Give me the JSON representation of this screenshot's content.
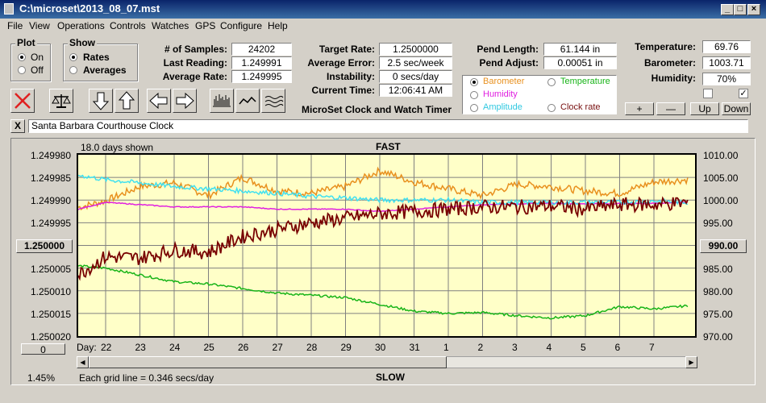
{
  "window": {
    "title": "C:\\microset\\2013_08_07.mst"
  },
  "menu": [
    "File",
    "View",
    "Operations",
    "Controls",
    "Watches",
    "GPS",
    "Configure",
    "Help"
  ],
  "plot_group": {
    "title": "Plot",
    "on": "On",
    "off": "Off",
    "selected": "On"
  },
  "show_group": {
    "title": "Show",
    "rates": "Rates",
    "averages": "Averages",
    "selected": "Rates"
  },
  "stats": {
    "samples_label": "# of Samples:",
    "samples": "24202",
    "last_label": "Last Reading:",
    "last": "1.249991",
    "avg_label": "Average Rate:",
    "avg": "1.249995",
    "target_label": "Target Rate:",
    "target": "1.2500000",
    "avgerr_label": "Average Error:",
    "avgerr": "2.5 sec/week",
    "instab_label": "Instability:",
    "instab": "0 secs/day",
    "curtime_label": "Current Time:",
    "curtime": "12:06:41 AM",
    "pendlen_label": "Pend Length:",
    "pendlen": "61.144 in",
    "pendadj_label": "Pend Adjust:",
    "pendadj": "0.00051 in",
    "temp_label": "Temperature:",
    "temp": "69.76",
    "baro_label": "Barometer:",
    "baro": "1003.71",
    "hum_label": "Humidity:",
    "hum": "70%"
  },
  "app_title": "MicroSet Clock and Watch Timer",
  "series_select": {
    "barometer": "Barometer",
    "temperature": "Temperature",
    "humidity": "Humidity",
    "amplitude": "Amplitude",
    "clockrate": "Clock rate",
    "selected": "Barometer"
  },
  "scale_buttons": {
    "plus": "+",
    "minus": "—",
    "up": "Up",
    "down": "Down"
  },
  "checkboxes": {
    "left": "",
    "right": "✓"
  },
  "clock_name": "Santa Barbara Courthouse Clock",
  "close_x": "X",
  "chart_header": {
    "days_shown": "18.0 days shown",
    "top": "FAST",
    "bottom": "SLOW",
    "grid_note": "Each grid line = 0.346 secs/day",
    "percent": "1.45%",
    "day_label": "Day:"
  },
  "left_btn": "1.250000",
  "right_btn": "990.00",
  "zero_btn": "0",
  "colors": {
    "barometer": "#e8901e",
    "temperature": "#18b418",
    "humidity": "#e020e0",
    "amplitude": "#40e0f0",
    "clockrate": "#780000",
    "grid": "#808080",
    "plotbg": "#ffffc8"
  },
  "chart_data": {
    "type": "line",
    "left_axis": {
      "ticks": [
        "1.249980",
        "1.249985",
        "1.249990",
        "1.249995",
        "1.250000",
        "1.250005",
        "1.250010",
        "1.250015",
        "1.250020"
      ],
      "range": [
        1.24998,
        1.25002
      ],
      "inverted": true
    },
    "right_axis": {
      "ticks": [
        "1010.00",
        "1005.00",
        "1000.00",
        "995.00",
        "990.00",
        "985.00",
        "980.00",
        "975.00",
        "970.00"
      ],
      "range": [
        970,
        1010
      ]
    },
    "x_ticks": [
      "22",
      "23",
      "24",
      "25",
      "26",
      "27",
      "28",
      "29",
      "30",
      "31",
      "1",
      "2",
      "3",
      "4",
      "5",
      "6",
      "7"
    ],
    "x_range": [
      21.2,
      39.2
    ],
    "series": [
      {
        "name": "Barometer",
        "color": "#e8901e",
        "scale": "right",
        "points": [
          [
            21.2,
            998.4
          ],
          [
            22,
            999.8
          ],
          [
            23,
            1003
          ],
          [
            24,
            1003.8
          ],
          [
            25,
            1001
          ],
          [
            26,
            1005
          ],
          [
            27,
            1002
          ],
          [
            28,
            1001.5
          ],
          [
            29,
            1003
          ],
          [
            30,
            1006.5
          ],
          [
            31,
            1004
          ],
          [
            32,
            1002.5
          ],
          [
            33,
            1001
          ],
          [
            34,
            1003.5
          ],
          [
            35,
            1003
          ],
          [
            36,
            1002
          ],
          [
            37,
            1001.5
          ],
          [
            38,
            1004
          ],
          [
            39,
            1004.5
          ]
        ]
      },
      {
        "name": "Temperature",
        "color": "#18b418",
        "scale": "right",
        "points": [
          [
            21.2,
            985.5
          ],
          [
            22,
            985
          ],
          [
            23,
            983.5
          ],
          [
            24,
            982
          ],
          [
            25,
            981.5
          ],
          [
            26,
            980.5
          ],
          [
            27,
            979.5
          ],
          [
            28,
            979
          ],
          [
            29,
            978.5
          ],
          [
            30,
            977
          ],
          [
            31,
            975.5
          ],
          [
            32,
            975
          ],
          [
            33,
            975.2
          ],
          [
            34,
            974.5
          ],
          [
            35,
            974
          ],
          [
            36,
            974.5
          ],
          [
            37,
            976.5
          ],
          [
            38,
            976
          ],
          [
            39,
            976.7
          ]
        ]
      },
      {
        "name": "Humidity",
        "color": "#e020e0",
        "scale": "right",
        "points": [
          [
            21.2,
            998
          ],
          [
            22,
            999.5
          ],
          [
            23,
            999
          ],
          [
            24,
            998.5
          ],
          [
            25,
            998.5
          ],
          [
            26,
            998.5
          ],
          [
            27,
            998
          ],
          [
            28,
            998
          ],
          [
            29,
            998
          ],
          [
            30,
            997.5
          ],
          [
            31,
            998
          ],
          [
            32,
            998.5
          ],
          [
            33,
            999
          ],
          [
            34,
            999.2
          ],
          [
            35,
            999.3
          ],
          [
            36,
            999.2
          ],
          [
            37,
            999.2
          ],
          [
            38,
            999.3
          ],
          [
            39,
            999.5
          ]
        ]
      },
      {
        "name": "Amplitude",
        "color": "#40e0f0",
        "scale": "right",
        "points": [
          [
            21.2,
            1005.5
          ],
          [
            22,
            1004.5
          ],
          [
            23,
            1003.8
          ],
          [
            24,
            1003
          ],
          [
            25,
            1002.5
          ],
          [
            26,
            1002
          ],
          [
            27,
            1001.5
          ],
          [
            28,
            1000.8
          ],
          [
            29,
            1000.5
          ],
          [
            30,
            1000
          ],
          [
            31,
            1000
          ],
          [
            32,
            1000
          ],
          [
            33,
            999.5
          ],
          [
            34,
            999.5
          ],
          [
            35,
            999.5
          ],
          [
            36,
            999.5
          ],
          [
            37,
            999.5
          ],
          [
            38,
            999.8
          ],
          [
            39,
            999.5
          ]
        ]
      },
      {
        "name": "Clock rate",
        "color": "#780000",
        "scale": "right",
        "points": [
          [
            21.2,
            983.5
          ],
          [
            22,
            987.5
          ],
          [
            23,
            987.2
          ],
          [
            24,
            989
          ],
          [
            25,
            988.5
          ],
          [
            26,
            992
          ],
          [
            27,
            993.5
          ],
          [
            28,
            995
          ],
          [
            29,
            996
          ],
          [
            30,
            997
          ],
          [
            31,
            997.5
          ],
          [
            32,
            998
          ],
          [
            33,
            998.5
          ],
          [
            34,
            998.5
          ],
          [
            35,
            998.7
          ],
          [
            36,
            998
          ],
          [
            37,
            999
          ],
          [
            38,
            999
          ],
          [
            39,
            999.5
          ]
        ]
      }
    ]
  }
}
